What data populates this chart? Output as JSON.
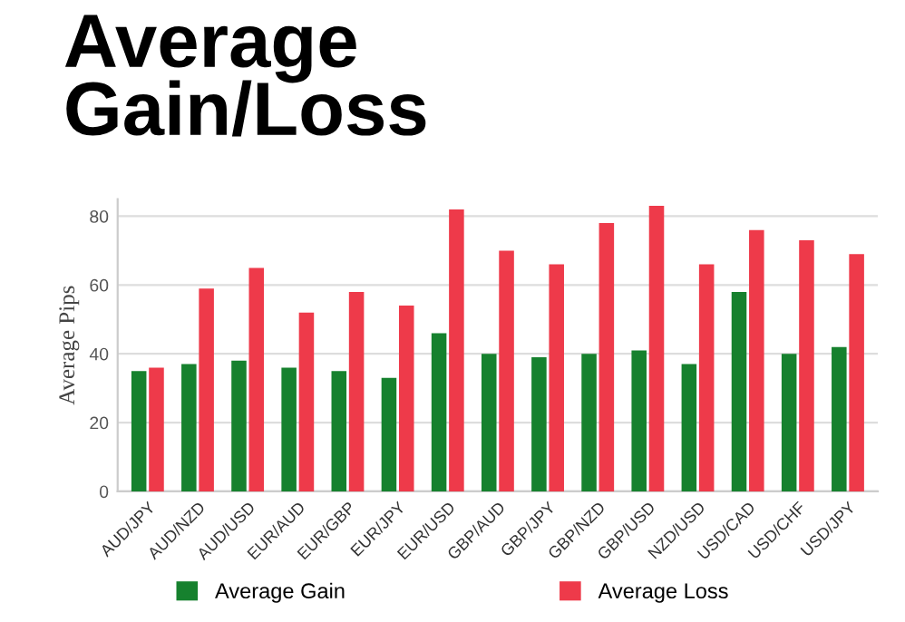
{
  "chart_data": {
    "type": "bar",
    "title": "Average\nGain/Loss",
    "ylabel": "Average Pips",
    "categories": [
      "AUD/JPY",
      "AUD/NZD",
      "AUD/USD",
      "EUR/AUD",
      "EUR/GBP",
      "EUR/JPY",
      "EUR/USD",
      "GBP/AUD",
      "GBP/JPY",
      "GBP/NZD",
      "GBP/USD",
      "NZD/USD",
      "USD/CAD",
      "USD/CHF",
      "USD/JPY"
    ],
    "series": [
      {
        "name": "Average Gain",
        "color": "#16812e",
        "values": [
          35,
          37,
          38,
          36,
          35,
          33,
          46,
          40,
          39,
          40,
          41,
          37,
          58,
          40,
          42
        ]
      },
      {
        "name": "Average Loss",
        "color": "#ee3a4a",
        "values": [
          36,
          59,
          65,
          52,
          58,
          54,
          82,
          70,
          66,
          78,
          83,
          66,
          76,
          73,
          69
        ]
      }
    ],
    "ylim": [
      0,
      85
    ],
    "yticks": [
      0,
      20,
      40,
      60,
      80
    ],
    "grid": "y",
    "legend": "bottom"
  }
}
